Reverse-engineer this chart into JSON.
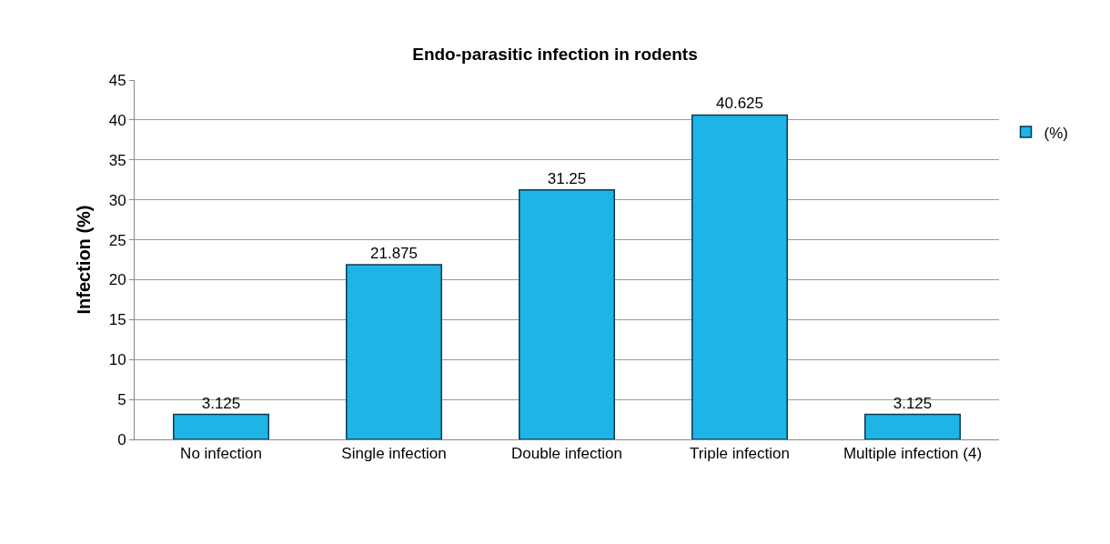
{
  "chart_data": {
    "type": "bar",
    "title": "Endo-parasitic infection in rodents",
    "ylabel": "Infection (%)",
    "categories": [
      "No infection",
      "Single infection",
      "Double infection",
      "Triple infection",
      "Multiple infection (4)"
    ],
    "series": [
      {
        "name": "(%)",
        "color": "#1eb4e6",
        "values": [
          3.125,
          21.875,
          31.25,
          40.625,
          3.125
        ]
      }
    ],
    "ylim": [
      0,
      45
    ],
    "yticks": [
      0,
      5,
      10,
      15,
      20,
      25,
      30,
      35,
      40,
      45
    ],
    "grid": "y",
    "legend": "top right",
    "data_labels": true
  }
}
